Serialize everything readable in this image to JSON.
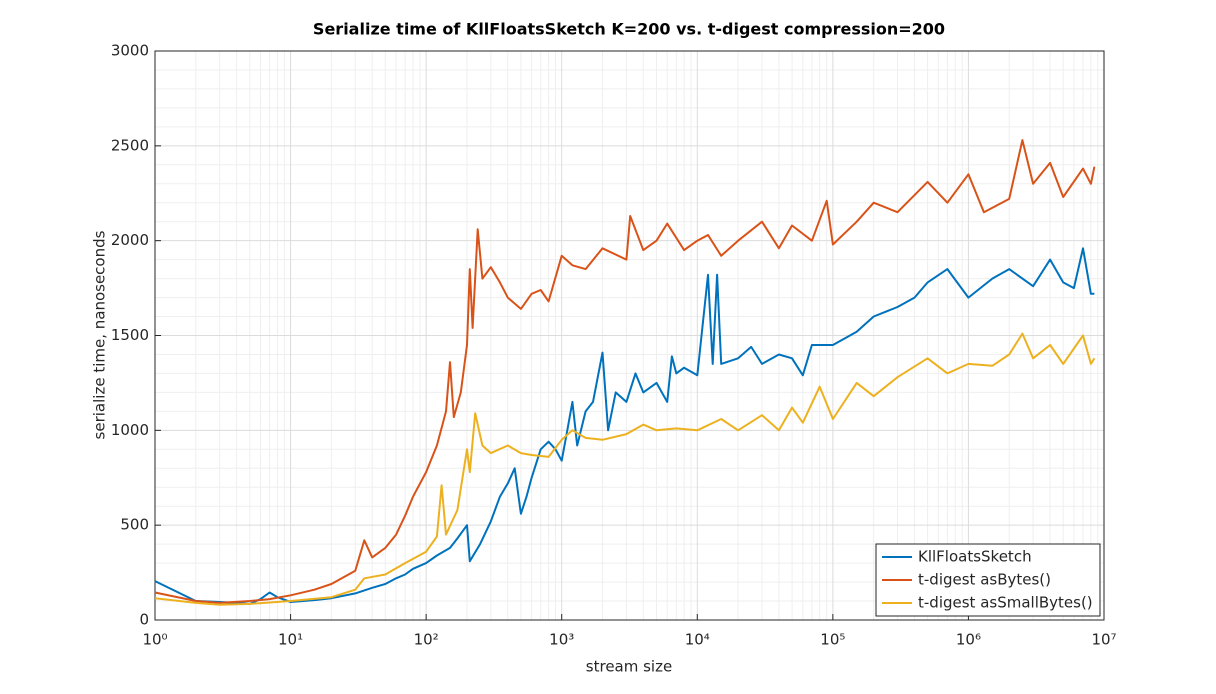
{
  "chart_data": {
    "type": "line",
    "title": "Serialize time of KllFloatsSketch K=200 vs. t-digest compression=200",
    "x_label": "stream size",
    "y_label": "serialize time, nanoseconds",
    "x_scale": "log",
    "grid": true,
    "minor_grid": true,
    "legend": "lower right",
    "xlim": [
      1,
      10000000
    ],
    "xticks": [
      {
        "value": 1,
        "label": "10⁰"
      },
      {
        "value": 10,
        "label": "10¹"
      },
      {
        "value": 100,
        "label": "10²"
      },
      {
        "value": 1000,
        "label": "10³"
      },
      {
        "value": 10000,
        "label": "10⁴"
      },
      {
        "value": 100000,
        "label": "10⁵"
      },
      {
        "value": 1000000,
        "label": "10⁶"
      },
      {
        "value": 10000000,
        "label": "10⁷"
      }
    ],
    "ylim": [
      0,
      3000
    ],
    "yticks": [
      0,
      500,
      1000,
      1500,
      2000,
      2500,
      3000
    ],
    "series": [
      {
        "name": "KllFloatsSketch",
        "color": "#0072bd",
        "x": [
          1,
          2,
          3,
          4,
          5,
          6,
          7,
          8,
          10,
          15,
          20,
          30,
          40,
          50,
          60,
          70,
          80,
          100,
          120,
          150,
          170,
          200,
          210,
          250,
          300,
          350,
          400,
          450,
          500,
          550,
          600,
          700,
          800,
          900,
          1000,
          1100,
          1200,
          1300,
          1500,
          1700,
          2000,
          2200,
          2500,
          3000,
          3500,
          4000,
          5000,
          6000,
          6500,
          7000,
          8000,
          10000,
          12000,
          13000,
          14000,
          15000,
          20000,
          25000,
          30000,
          40000,
          50000,
          60000,
          70000,
          100000,
          150000,
          200000,
          300000,
          400000,
          500000,
          700000,
          1000000,
          1500000,
          2000000,
          3000000,
          4000000,
          5000000,
          6000000,
          7000000,
          8000000,
          8500000
        ],
        "values": [
          205,
          100,
          95,
          90,
          85,
          110,
          145,
          120,
          95,
          105,
          115,
          140,
          170,
          190,
          220,
          240,
          270,
          300,
          340,
          380,
          430,
          500,
          310,
          400,
          520,
          650,
          720,
          800,
          560,
          650,
          750,
          900,
          940,
          900,
          840,
          1000,
          1150,
          920,
          1100,
          1150,
          1410,
          1000,
          1200,
          1150,
          1300,
          1200,
          1250,
          1150,
          1390,
          1300,
          1330,
          1290,
          1820,
          1350,
          1820,
          1350,
          1380,
          1440,
          1350,
          1400,
          1380,
          1290,
          1450,
          1450,
          1520,
          1600,
          1650,
          1700,
          1780,
          1850,
          1700,
          1800,
          1850,
          1760,
          1900,
          1780,
          1750,
          1960,
          1720,
          1720
        ]
      },
      {
        "name": "t-digest asBytes()",
        "color": "#d95319",
        "x": [
          1,
          2,
          3,
          5,
          7,
          10,
          15,
          20,
          30,
          35,
          40,
          50,
          60,
          70,
          80,
          100,
          120,
          140,
          150,
          160,
          180,
          200,
          210,
          220,
          240,
          260,
          300,
          350,
          400,
          500,
          600,
          700,
          800,
          1000,
          1200,
          1500,
          2000,
          3000,
          3200,
          4000,
          5000,
          6000,
          8000,
          10000,
          12000,
          15000,
          20000,
          30000,
          40000,
          50000,
          70000,
          90000,
          100000,
          150000,
          200000,
          300000,
          500000,
          700000,
          1000000,
          1300000,
          2000000,
          2500000,
          3000000,
          4000000,
          5000000,
          7000000,
          8000000,
          8500000
        ],
        "values": [
          145,
          100,
          90,
          100,
          110,
          130,
          160,
          190,
          260,
          420,
          330,
          380,
          450,
          550,
          650,
          780,
          920,
          1100,
          1360,
          1070,
          1200,
          1450,
          1850,
          1540,
          2060,
          1800,
          1860,
          1780,
          1700,
          1640,
          1720,
          1740,
          1680,
          1920,
          1870,
          1850,
          1960,
          1900,
          2130,
          1950,
          2000,
          2090,
          1950,
          2000,
          2030,
          1920,
          2000,
          2100,
          1960,
          2080,
          2000,
          2210,
          1980,
          2100,
          2200,
          2150,
          2310,
          2200,
          2350,
          2150,
          2220,
          2530,
          2300,
          2410,
          2230,
          2380,
          2300,
          2390
        ]
      },
      {
        "name": "t-digest asSmallBytes()",
        "color": "#edb120",
        "x": [
          1,
          2,
          3,
          5,
          10,
          20,
          30,
          35,
          50,
          70,
          100,
          120,
          130,
          140,
          170,
          200,
          210,
          230,
          260,
          300,
          400,
          500,
          600,
          800,
          1000,
          1200,
          1500,
          2000,
          3000,
          4000,
          5000,
          7000,
          10000,
          15000,
          20000,
          30000,
          40000,
          50000,
          60000,
          80000,
          100000,
          150000,
          200000,
          300000,
          500000,
          700000,
          1000000,
          1500000,
          2000000,
          2500000,
          3000000,
          4000000,
          5000000,
          7000000,
          8000000,
          8500000
        ],
        "values": [
          115,
          90,
          80,
          85,
          100,
          120,
          160,
          220,
          240,
          300,
          360,
          440,
          710,
          450,
          580,
          900,
          780,
          1090,
          920,
          880,
          920,
          880,
          870,
          860,
          950,
          1000,
          960,
          950,
          980,
          1030,
          1000,
          1010,
          1000,
          1060,
          1000,
          1080,
          1000,
          1120,
          1040,
          1230,
          1060,
          1250,
          1180,
          1280,
          1380,
          1300,
          1350,
          1340,
          1400,
          1510,
          1380,
          1450,
          1350,
          1500,
          1350,
          1380
        ]
      }
    ]
  }
}
